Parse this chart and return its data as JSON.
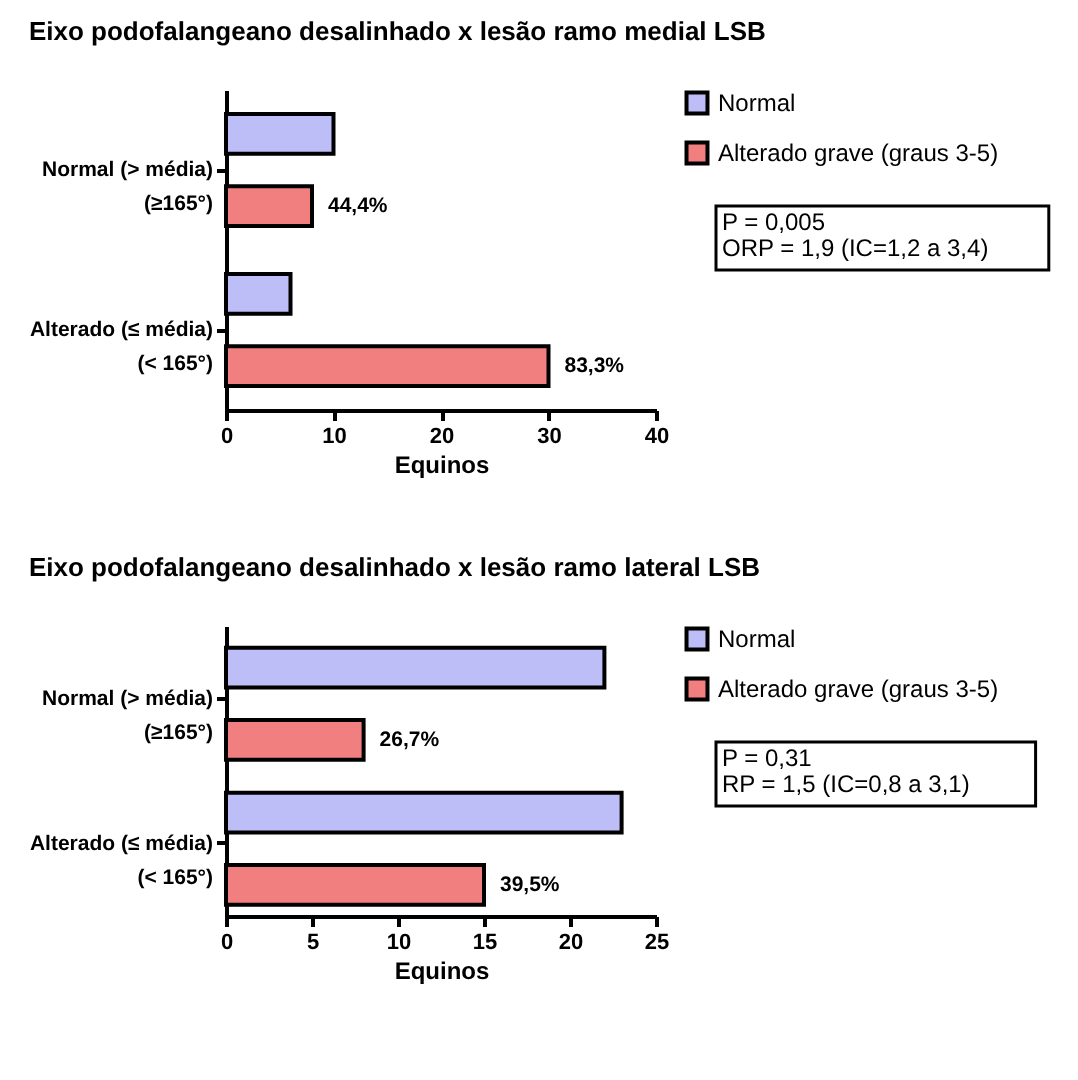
{
  "chart_data": [
    {
      "type": "bar",
      "orientation": "horizontal",
      "title": "Eixo podofalangeano desalinhado x lesão ramo medial LSB",
      "xlabel": "Equinos",
      "categories": [
        "Normal (> média)\n(≥165°)",
        "Alterado (≤ média)\n(< 165°)"
      ],
      "series": [
        {
          "name": "Normal",
          "color": "#bdbdf7",
          "values": [
            10,
            6
          ]
        },
        {
          "name": "Alterado grave (graus 3-5)",
          "color": "#f27f7f",
          "values": [
            8,
            30
          ]
        }
      ],
      "xlim": [
        0,
        40
      ],
      "xticks": [
        0,
        10,
        20,
        30,
        40
      ],
      "grid": false,
      "legend": "top right",
      "annotations": [
        "P = 0,005",
        "ORP = 1,9 (IC=1,2 a 3,4)",
        {
          "text": "44,4%",
          "x": 8,
          "y": "Normal (> média)\n(≥165°)"
        },
        {
          "text": "83,3%",
          "x": 30,
          "y": "Alterado (≤ média)\n(< 165°)"
        }
      ]
    },
    {
      "type": "bar",
      "orientation": "horizontal",
      "title": "Eixo podofalangeano desalinhado x lesão ramo lateral LSB",
      "xlabel": "Equinos",
      "categories": [
        "Normal (> média)\n(≥165°)",
        "Alterado (≤ média)\n(< 165°)"
      ],
      "series": [
        {
          "name": "Normal",
          "color": "#bdbdf7",
          "values": [
            22,
            23
          ]
        },
        {
          "name": "Alterado grave (graus 3-5)",
          "color": "#f27f7f",
          "values": [
            8,
            15
          ]
        }
      ],
      "xlim": [
        0,
        25
      ],
      "xticks": [
        0,
        5,
        10,
        15,
        20,
        25
      ],
      "grid": false,
      "legend": "top right",
      "annotations": [
        "P = 0,31",
        "RP = 1,5 (IC=0,8 a 3,1)",
        {
          "text": "26,7%",
          "x": 8,
          "y": "Normal (> média)\n(≥165°)"
        },
        {
          "text": "39,5%",
          "x": 15,
          "y": "Alterado (≤ média)\n(< 165°)"
        }
      ]
    }
  ]
}
